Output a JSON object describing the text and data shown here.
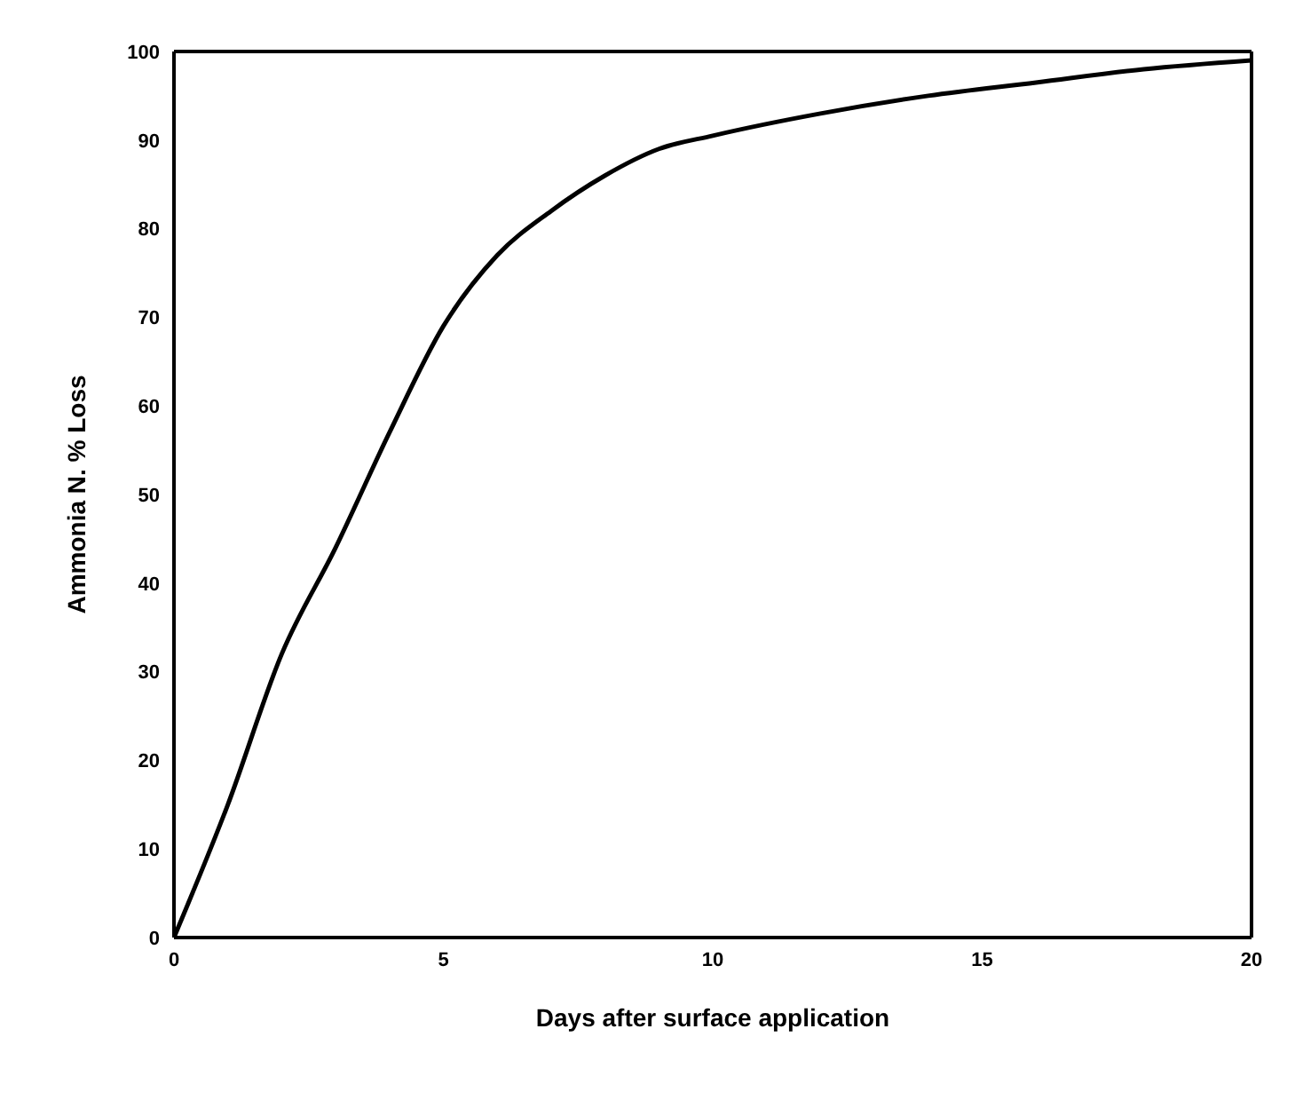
{
  "chart_data": {
    "type": "line",
    "xlabel": "Days after surface application",
    "ylabel": "Ammonia N. % Loss",
    "x": [
      0,
      1,
      2,
      3,
      4,
      5,
      6,
      7,
      8,
      9,
      10,
      12,
      14,
      16,
      18,
      20
    ],
    "series": [
      {
        "color": "#000000",
        "values": [
          0,
          15,
          32,
          44,
          57,
          69,
          77,
          82,
          86,
          89,
          90.5,
          93,
          95,
          96.5,
          98,
          99
        ]
      }
    ],
    "xlim": [
      0,
      20
    ],
    "xticks": [
      0,
      5,
      10,
      15,
      20
    ],
    "ylim": [
      0,
      100
    ],
    "yticks": [
      0,
      10,
      20,
      30,
      40,
      50,
      60,
      70,
      80,
      90,
      100
    ],
    "grid": false,
    "legend": false,
    "marker": "none",
    "line_style": "solid"
  }
}
